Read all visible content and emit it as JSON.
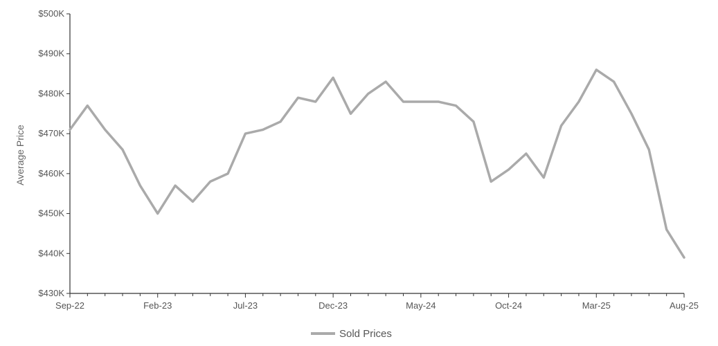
{
  "chart_data": {
    "type": "line",
    "title": "",
    "xlabel": "",
    "ylabel": "Average Price",
    "ylim": [
      430000,
      500000
    ],
    "yticks": [
      {
        "value": 430000,
        "label": "$430K"
      },
      {
        "value": 440000,
        "label": "$440K"
      },
      {
        "value": 450000,
        "label": "$450K"
      },
      {
        "value": 460000,
        "label": "$460K"
      },
      {
        "value": 470000,
        "label": "$470K"
      },
      {
        "value": 480000,
        "label": "$480K"
      },
      {
        "value": 490000,
        "label": "$490K"
      },
      {
        "value": 500000,
        "label": "$500K"
      }
    ],
    "x": [
      "Sep-22",
      "Oct-22",
      "Nov-22",
      "Dec-22",
      "Jan-23",
      "Feb-23",
      "Mar-23",
      "Apr-23",
      "May-23",
      "Jun-23",
      "Jul-23",
      "Aug-23",
      "Sep-23",
      "Oct-23",
      "Nov-23",
      "Dec-23",
      "Jan-24",
      "Feb-24",
      "Mar-24",
      "Apr-24",
      "May-24",
      "Jun-24",
      "Jul-24",
      "Aug-24",
      "Sep-24",
      "Oct-24",
      "Nov-24",
      "Dec-24",
      "Jan-25",
      "Feb-25",
      "Mar-25",
      "Apr-25",
      "May-25",
      "Jun-25",
      "Jul-25",
      "Aug-25"
    ],
    "x_tick_labels": [
      "Sep-22",
      "Feb-23",
      "Jul-23",
      "Dec-23",
      "May-24",
      "Oct-24",
      "Mar-25",
      "Aug-25"
    ],
    "series": [
      {
        "name": "Sold Prices",
        "color": "#aaaaaa",
        "values": [
          471000,
          477000,
          471000,
          466000,
          457000,
          450000,
          457000,
          453000,
          458000,
          460000,
          470000,
          471000,
          473000,
          479000,
          478000,
          484000,
          475000,
          480000,
          483000,
          478000,
          478000,
          478000,
          477000,
          473000,
          458000,
          461000,
          465000,
          459000,
          472000,
          478000,
          486000,
          483000,
          475000,
          466000,
          446000,
          439000
        ]
      }
    ],
    "legend": {
      "position": "bottom-center"
    },
    "grid": false
  }
}
